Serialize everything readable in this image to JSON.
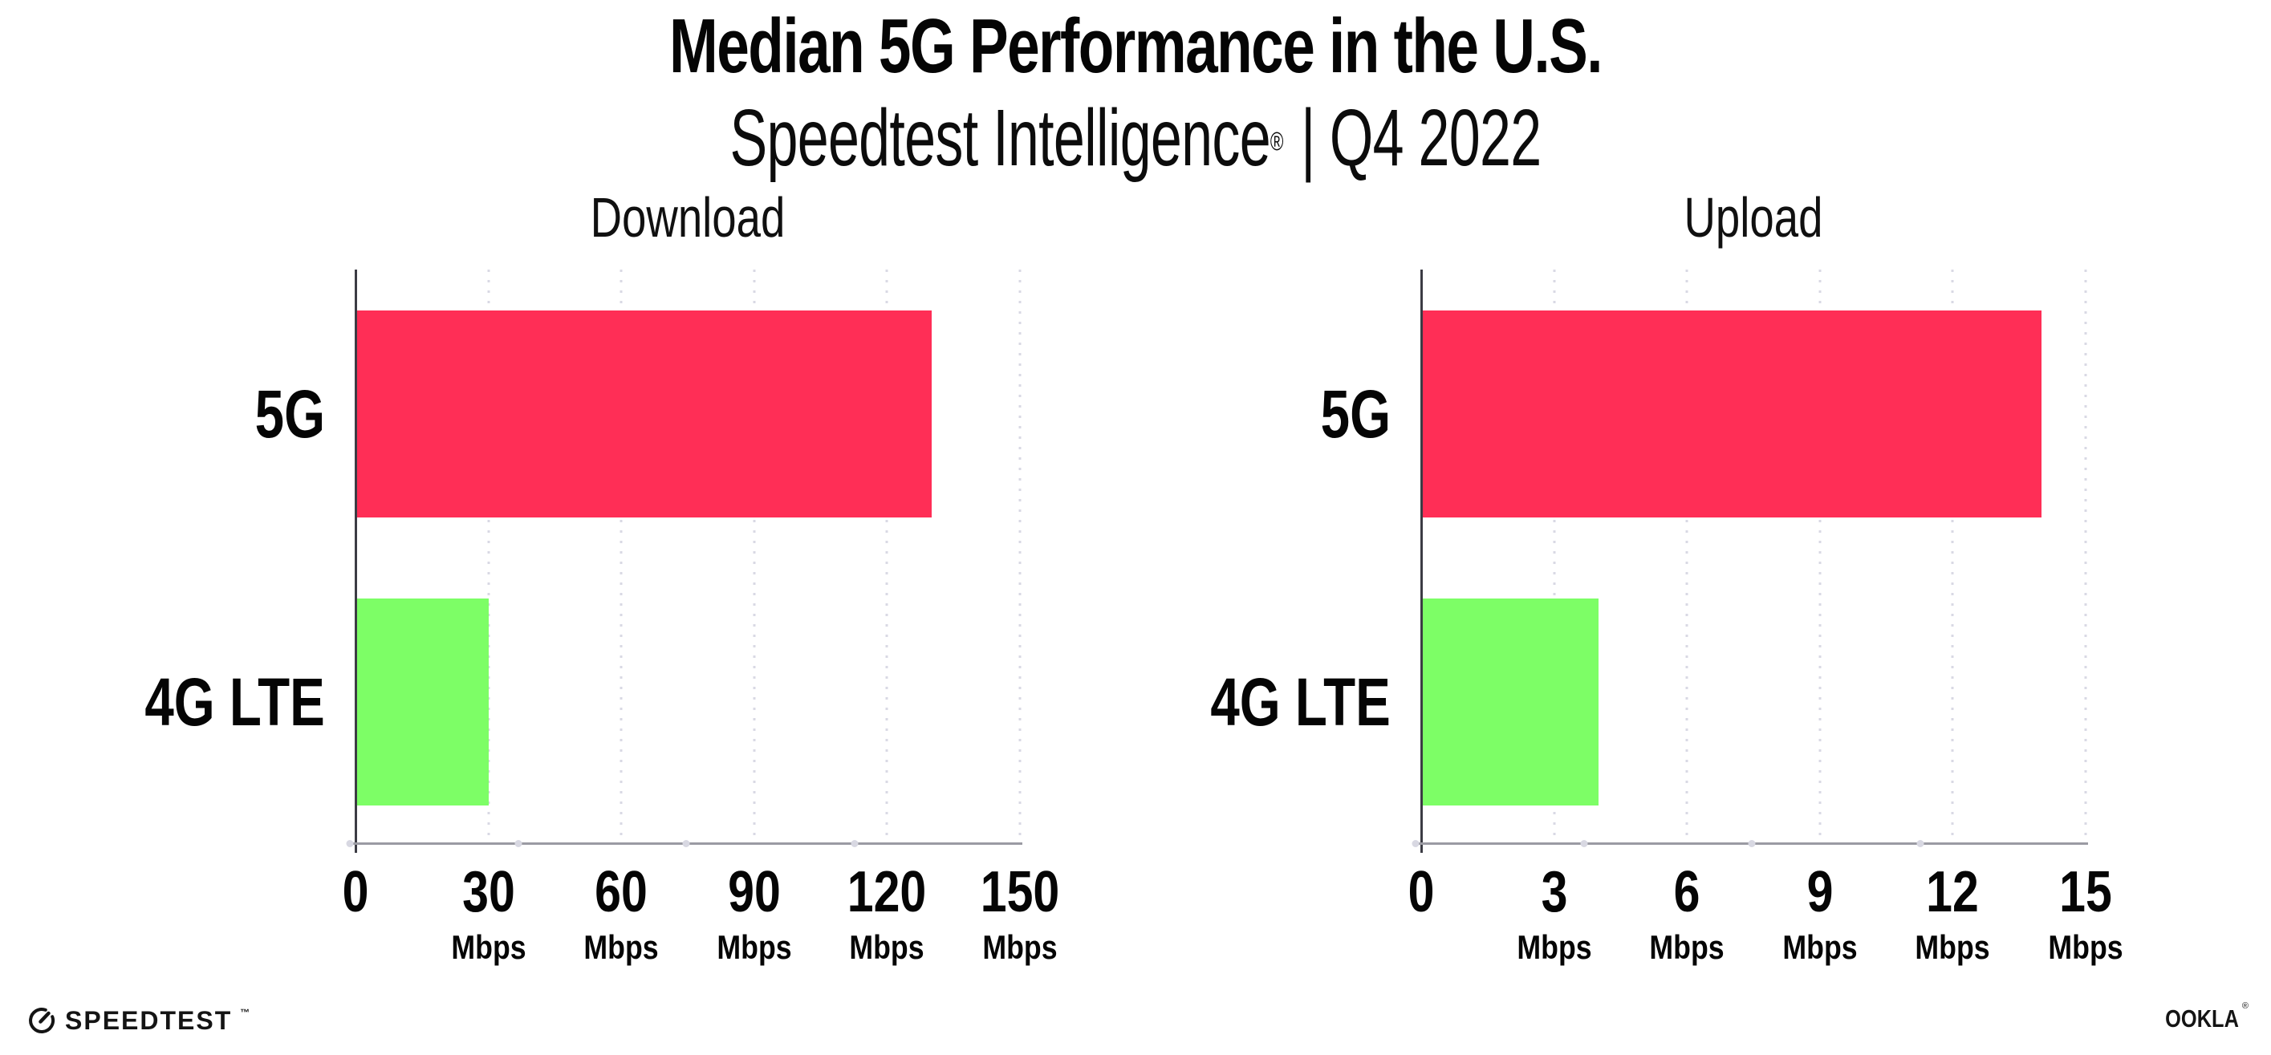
{
  "title": "Median 5G Performance in the U.S.",
  "subtitle": {
    "brand": "Speedtest Intelligence",
    "registered_mark": "®",
    "separator": "|",
    "period": "Q4 2022"
  },
  "footer": {
    "speedtest_wordmark": "SPEEDTEST",
    "speedtest_trademark": "™",
    "ookla_wordmark": "OOKLA",
    "ookla_registered": "®"
  },
  "colors": {
    "bar_5g": "#FF2E56",
    "bar_4g_lte": "#7DFE66",
    "axis_y": "#3C3C44",
    "axis_x": "#9B9BA3",
    "gridline": "#D9D9E4",
    "text": "#0B0B0B"
  },
  "chart_data": [
    {
      "type": "bar",
      "orientation": "horizontal",
      "title": "Download",
      "categories": [
        "5G",
        "4G LTE"
      ],
      "values": [
        130,
        30
      ],
      "unit": "Mbps",
      "xlim": [
        0,
        150
      ],
      "ticks": [
        0,
        30,
        60,
        90,
        120,
        150
      ],
      "tick_unit_label": "Mbps",
      "bar_colors": [
        "#FF2E56",
        "#7DFE66"
      ],
      "grid": "dotted-vertical",
      "legend": "none"
    },
    {
      "type": "bar",
      "orientation": "horizontal",
      "title": "Upload",
      "categories": [
        "5G",
        "4G LTE"
      ],
      "values": [
        14,
        4
      ],
      "unit": "Mbps",
      "xlim": [
        0,
        15
      ],
      "ticks": [
        0,
        3,
        6,
        9,
        12,
        15
      ],
      "tick_unit_label": "Mbps",
      "bar_colors": [
        "#FF2E56",
        "#7DFE66"
      ],
      "grid": "dotted-vertical",
      "legend": "none"
    }
  ]
}
